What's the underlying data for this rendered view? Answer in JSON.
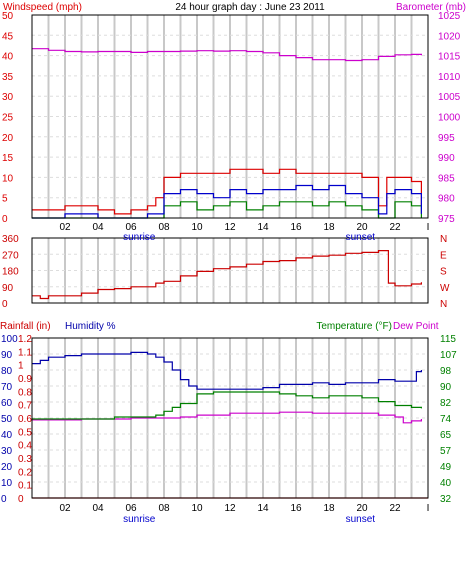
{
  "colors": {
    "wind": "#dd0000",
    "wind_avg": "#0000cc",
    "wind_dark": "#008000",
    "barometer": "#cc00cc",
    "direction": "#cc0000",
    "humidity": "#0000aa",
    "temperature": "#008000",
    "dewpoint": "#cc00cc",
    "rainfall": "#cc0000",
    "grid": "#c8c8c8"
  },
  "chart_data": [
    {
      "type": "line",
      "title": "24 hour graph day : June 23 2011",
      "ylabel_left": "Windspeed (mph)",
      "ylabel_right": "Barometer (mb)",
      "x_ticks": [
        "02",
        "04",
        "06",
        "08",
        "10",
        "12",
        "14",
        "16",
        "18",
        "20",
        "22",
        "I"
      ],
      "x_marks": [
        "sunrise",
        "sunset"
      ],
      "x_range": [
        0,
        24
      ],
      "y_left_ticks": [
        0,
        5,
        10,
        15,
        20,
        25,
        30,
        35,
        40,
        45,
        50
      ],
      "y_left_range": [
        0,
        50
      ],
      "y_right_ticks": [
        975,
        980,
        985,
        990,
        995,
        1000,
        1005,
        1010,
        1015,
        1020,
        1025
      ],
      "y_right_range": [
        975,
        1025
      ],
      "series": [
        {
          "key": "gust",
          "axis": "left",
          "x": [
            0,
            2,
            4,
            5,
            6,
            7,
            7.5,
            8,
            9,
            10,
            11,
            12,
            13,
            14,
            15,
            16,
            17,
            18,
            19,
            20,
            21,
            21.5,
            22,
            23,
            23.6
          ],
          "y": [
            2,
            3,
            2,
            1,
            2,
            3,
            5,
            10,
            11,
            11,
            11,
            12,
            12,
            11,
            12,
            11,
            11,
            11,
            11,
            10,
            3,
            10,
            10,
            9,
            3
          ]
        },
        {
          "key": "average",
          "axis": "left",
          "x": [
            0,
            2,
            4,
            6,
            7,
            8,
            9,
            10,
            11,
            12,
            13,
            14,
            15,
            16,
            17,
            18,
            19,
            20,
            21,
            21.5,
            22,
            23,
            23.6
          ],
          "y": [
            0,
            1,
            0,
            0,
            1,
            6,
            7,
            6,
            5,
            7,
            6,
            7,
            7,
            8,
            7,
            8,
            6,
            5,
            1,
            6,
            7,
            6,
            1
          ]
        },
        {
          "key": "lull",
          "axis": "left",
          "x": [
            0,
            2,
            4,
            6,
            7,
            8,
            9,
            10,
            11,
            12,
            13,
            14,
            15,
            16,
            17,
            18,
            19,
            20,
            21,
            22,
            23,
            23.6
          ],
          "y": [
            0,
            0,
            0,
            0,
            0,
            3,
            4,
            2,
            3,
            4,
            2,
            3,
            4,
            4,
            3,
            4,
            3,
            2,
            0,
            4,
            3,
            0
          ]
        },
        {
          "key": "barometer",
          "axis": "right",
          "x": [
            0,
            1,
            2,
            3,
            4,
            5,
            6,
            7,
            8,
            9,
            10,
            11,
            12,
            13,
            14,
            15,
            16,
            17,
            18,
            19,
            20,
            21,
            22,
            23,
            23.6
          ],
          "y": [
            1016.7,
            1016.3,
            1016.0,
            1015.9,
            1016.0,
            1016.0,
            1015.8,
            1016.0,
            1016.0,
            1016.1,
            1016.2,
            1016.1,
            1016.2,
            1016.0,
            1015.7,
            1015.0,
            1014.5,
            1014.0,
            1014.0,
            1013.8,
            1014.0,
            1014.8,
            1015.2,
            1015.3,
            1015.1
          ]
        }
      ]
    },
    {
      "type": "line",
      "y_left_ticks": [
        0,
        90,
        180,
        270,
        360
      ],
      "y_left_range": [
        0,
        360
      ],
      "y_right_labels": [
        "N",
        "W",
        "S",
        "E",
        "N"
      ],
      "x_range": [
        0,
        24
      ],
      "series": [
        {
          "key": "direction",
          "x": [
            0,
            0.5,
            1,
            2,
            3,
            4,
            5,
            6,
            7,
            7.5,
            8,
            9,
            10,
            11,
            12,
            13,
            14,
            15,
            16,
            17,
            18,
            19,
            20,
            21,
            21.4,
            21.6,
            22,
            23,
            23.6
          ],
          "y": [
            40,
            25,
            40,
            40,
            55,
            75,
            80,
            90,
            90,
            110,
            120,
            150,
            175,
            190,
            200,
            215,
            230,
            235,
            250,
            260,
            265,
            275,
            280,
            290,
            290,
            110,
            95,
            105,
            115
          ]
        }
      ]
    },
    {
      "type": "line",
      "ylabel_left_1": "Rainfall (in)",
      "ylabel_left_2": "Humidity %",
      "ylabel_right_1": "Temperature (°F)",
      "ylabel_right_2": "Dew Point",
      "x_ticks": [
        "02",
        "04",
        "06",
        "08",
        "10",
        "12",
        "14",
        "16",
        "18",
        "20",
        "22",
        "I"
      ],
      "x_marks": [
        "sunrise",
        "sunset"
      ],
      "x_range": [
        0,
        24
      ],
      "rain_ticks": [
        "0",
        "0.1",
        "0.2",
        "0.3",
        "0.4",
        "0.5",
        "0.6",
        "0.7",
        "0.8",
        "0.9",
        "1",
        "1.1",
        "1.2"
      ],
      "rain_range": [
        0,
        1.2
      ],
      "humidity_ticks": [
        0,
        10,
        20,
        30,
        40,
        50,
        60,
        70,
        80,
        90,
        100
      ],
      "humidity_range": [
        0,
        100
      ],
      "temp_ticks": [
        32,
        40,
        49,
        57,
        65,
        74,
        82,
        90,
        98,
        107,
        115
      ],
      "temp_range": [
        32,
        115
      ],
      "series": [
        {
          "key": "humidity",
          "axis": "humidity",
          "x": [
            0,
            0.5,
            1,
            2,
            3,
            4,
            5,
            6,
            7,
            7.5,
            8,
            8.5,
            9,
            9.5,
            10,
            11,
            12,
            13,
            14,
            15,
            16,
            17,
            18,
            19,
            20,
            21,
            22,
            22.5,
            23,
            23.3,
            23.6
          ],
          "y": [
            84,
            86,
            88,
            89,
            90,
            90,
            90,
            91,
            90,
            88,
            85,
            80,
            74,
            70,
            68,
            68,
            68,
            68,
            69,
            71,
            71,
            72,
            71,
            72,
            72,
            74,
            73,
            73,
            73,
            79,
            80
          ]
        },
        {
          "key": "temperature",
          "axis": "temp",
          "x": [
            0,
            1,
            2,
            3,
            4,
            5,
            6,
            7,
            7.5,
            8,
            8.5,
            9,
            10,
            11,
            12,
            13,
            14,
            15,
            16,
            17,
            18,
            19,
            20,
            21,
            22,
            23,
            23.6
          ],
          "y": [
            73,
            73,
            73,
            73,
            73,
            74,
            74,
            74,
            75,
            77,
            79,
            81,
            86,
            87,
            87,
            87,
            87,
            86,
            85,
            84,
            85,
            85,
            84,
            82,
            80,
            79,
            78.5
          ]
        },
        {
          "key": "dewpoint",
          "axis": "temp",
          "x": [
            0,
            1,
            2,
            3,
            4,
            5,
            6,
            7,
            8,
            9,
            10,
            11,
            12,
            13,
            14,
            15,
            16,
            17,
            18,
            19,
            20,
            21,
            22,
            22.5,
            23,
            23.6
          ],
          "y": [
            72.5,
            72.5,
            72.5,
            73,
            73,
            73,
            73.5,
            73.5,
            73.5,
            74,
            75,
            75,
            76,
            76,
            76,
            76.5,
            76.5,
            76,
            76,
            76,
            76,
            75,
            74,
            71,
            72,
            73
          ]
        },
        {
          "key": "rainfall",
          "axis": "rain",
          "x": [
            0,
            24
          ],
          "y": [
            0,
            0
          ]
        }
      ]
    }
  ]
}
